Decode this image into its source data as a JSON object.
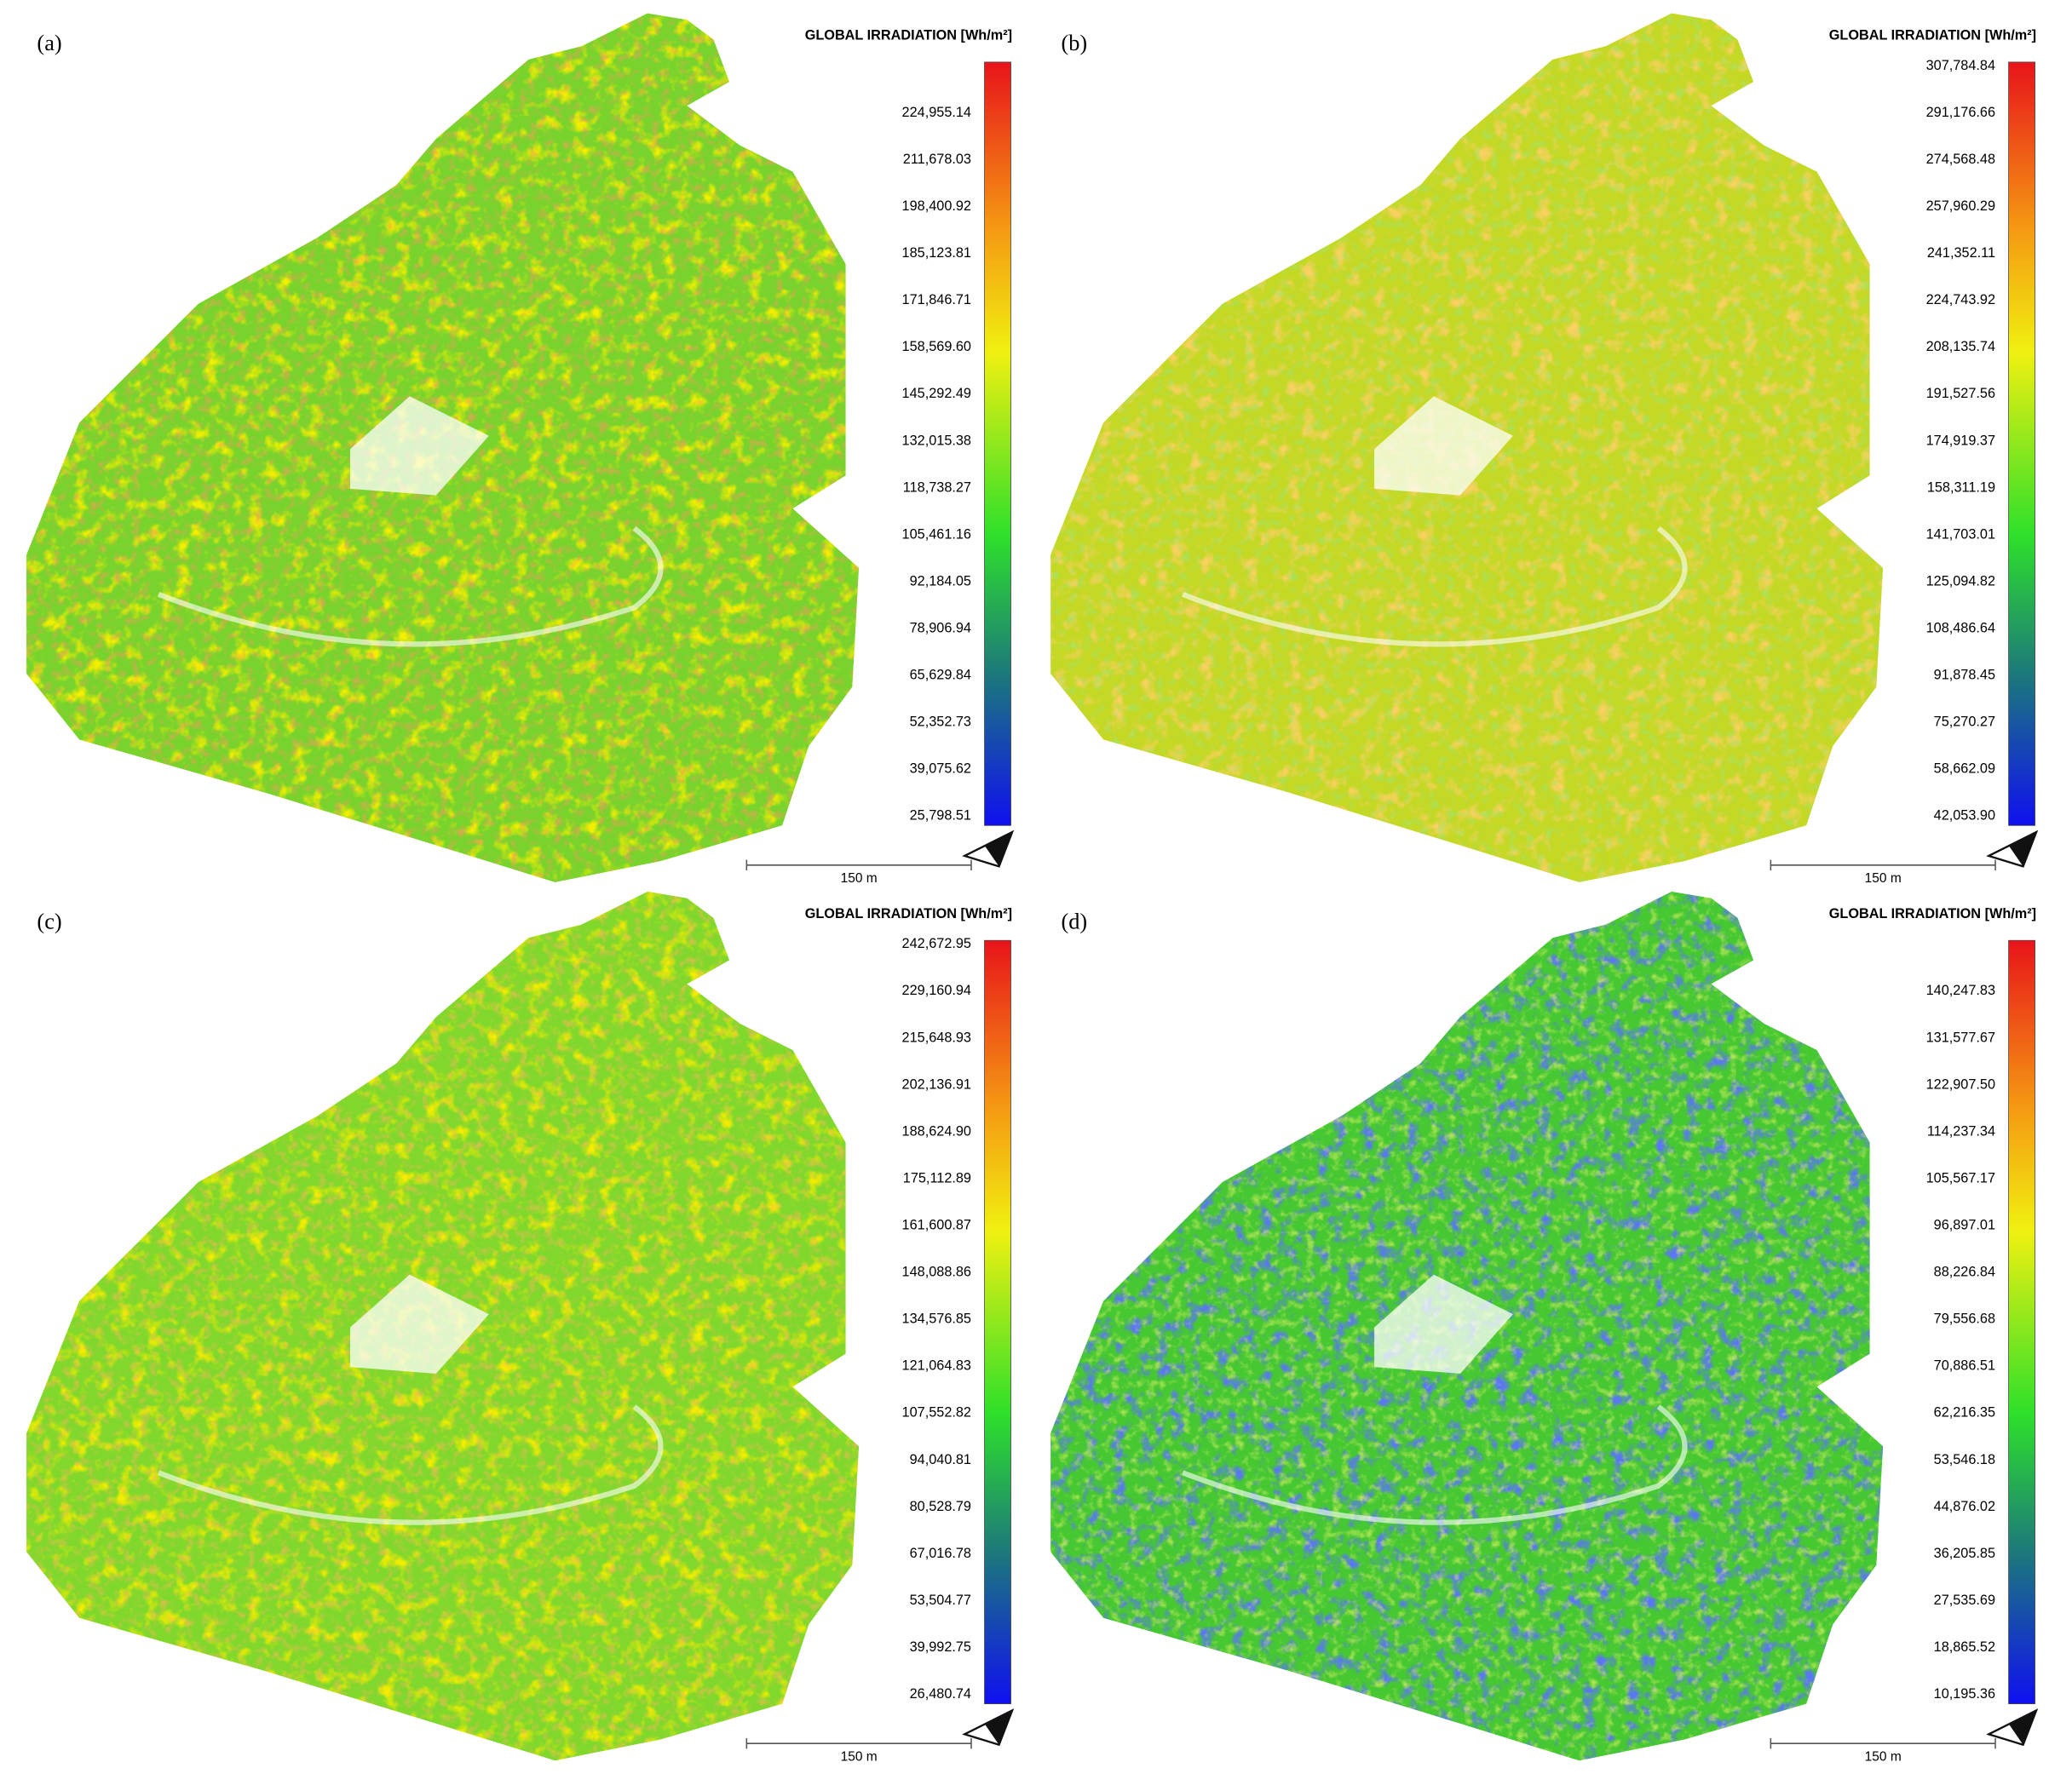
{
  "panels": [
    {
      "label": "(a)",
      "legend_title": "GLOBAL IRRADIATION [Wh/m²]",
      "scale_bar": "150 m",
      "legend_labels": [
        "224,955.14",
        "211,678.03",
        "198,400.92",
        "185,123.81",
        "171,846.71",
        "158,569.60",
        "145,292.49",
        "132,015.38",
        "118,738.27",
        "105,461.16",
        "92,184.05",
        "78,906.94",
        "65,629.84",
        "52,352.73",
        "39,075.62",
        "25,798.51"
      ]
    },
    {
      "label": "(b)",
      "legend_title": "GLOBAL IRRADIATION [Wh/m²]",
      "scale_bar": "150 m",
      "legend_labels": [
        "307,784.84",
        "291,176.66",
        "274,568.48",
        "257,960.29",
        "241,352.11",
        "224,743.92",
        "208,135.74",
        "191,527.56",
        "174,919.37",
        "158,311.19",
        "141,703.01",
        "125,094.82",
        "108,486.64",
        "91,878.45",
        "75,270.27",
        "58,662.09",
        "42,053.90"
      ]
    },
    {
      "label": "(c)",
      "legend_title": "GLOBAL IRRADIATION [Wh/m²]",
      "scale_bar": "150 m",
      "legend_labels": [
        "242,672.95",
        "229,160.94",
        "215,648.93",
        "202,136.91",
        "188,624.90",
        "175,112.89",
        "161,600.87",
        "148,088.86",
        "134,576.85",
        "121,064.83",
        "107,552.82",
        "94,040.81",
        "80,528.79",
        "67,016.78",
        "53,504.77",
        "39,992.75",
        "26,480.74"
      ]
    },
    {
      "label": "(d)",
      "legend_title": "GLOBAL IRRADIATION [Wh/m²]",
      "scale_bar": "150 m",
      "legend_labels": [
        "140,247.83",
        "131,577.67",
        "122,907.50",
        "114,237.34",
        "105,567.17",
        "96,897.01",
        "88,226.84",
        "79,556.68",
        "70,886.51",
        "62,216.35",
        "53,546.18",
        "44,876.02",
        "36,205.85",
        "27,535.69",
        "18,865.52",
        "10,195.36"
      ]
    }
  ]
}
